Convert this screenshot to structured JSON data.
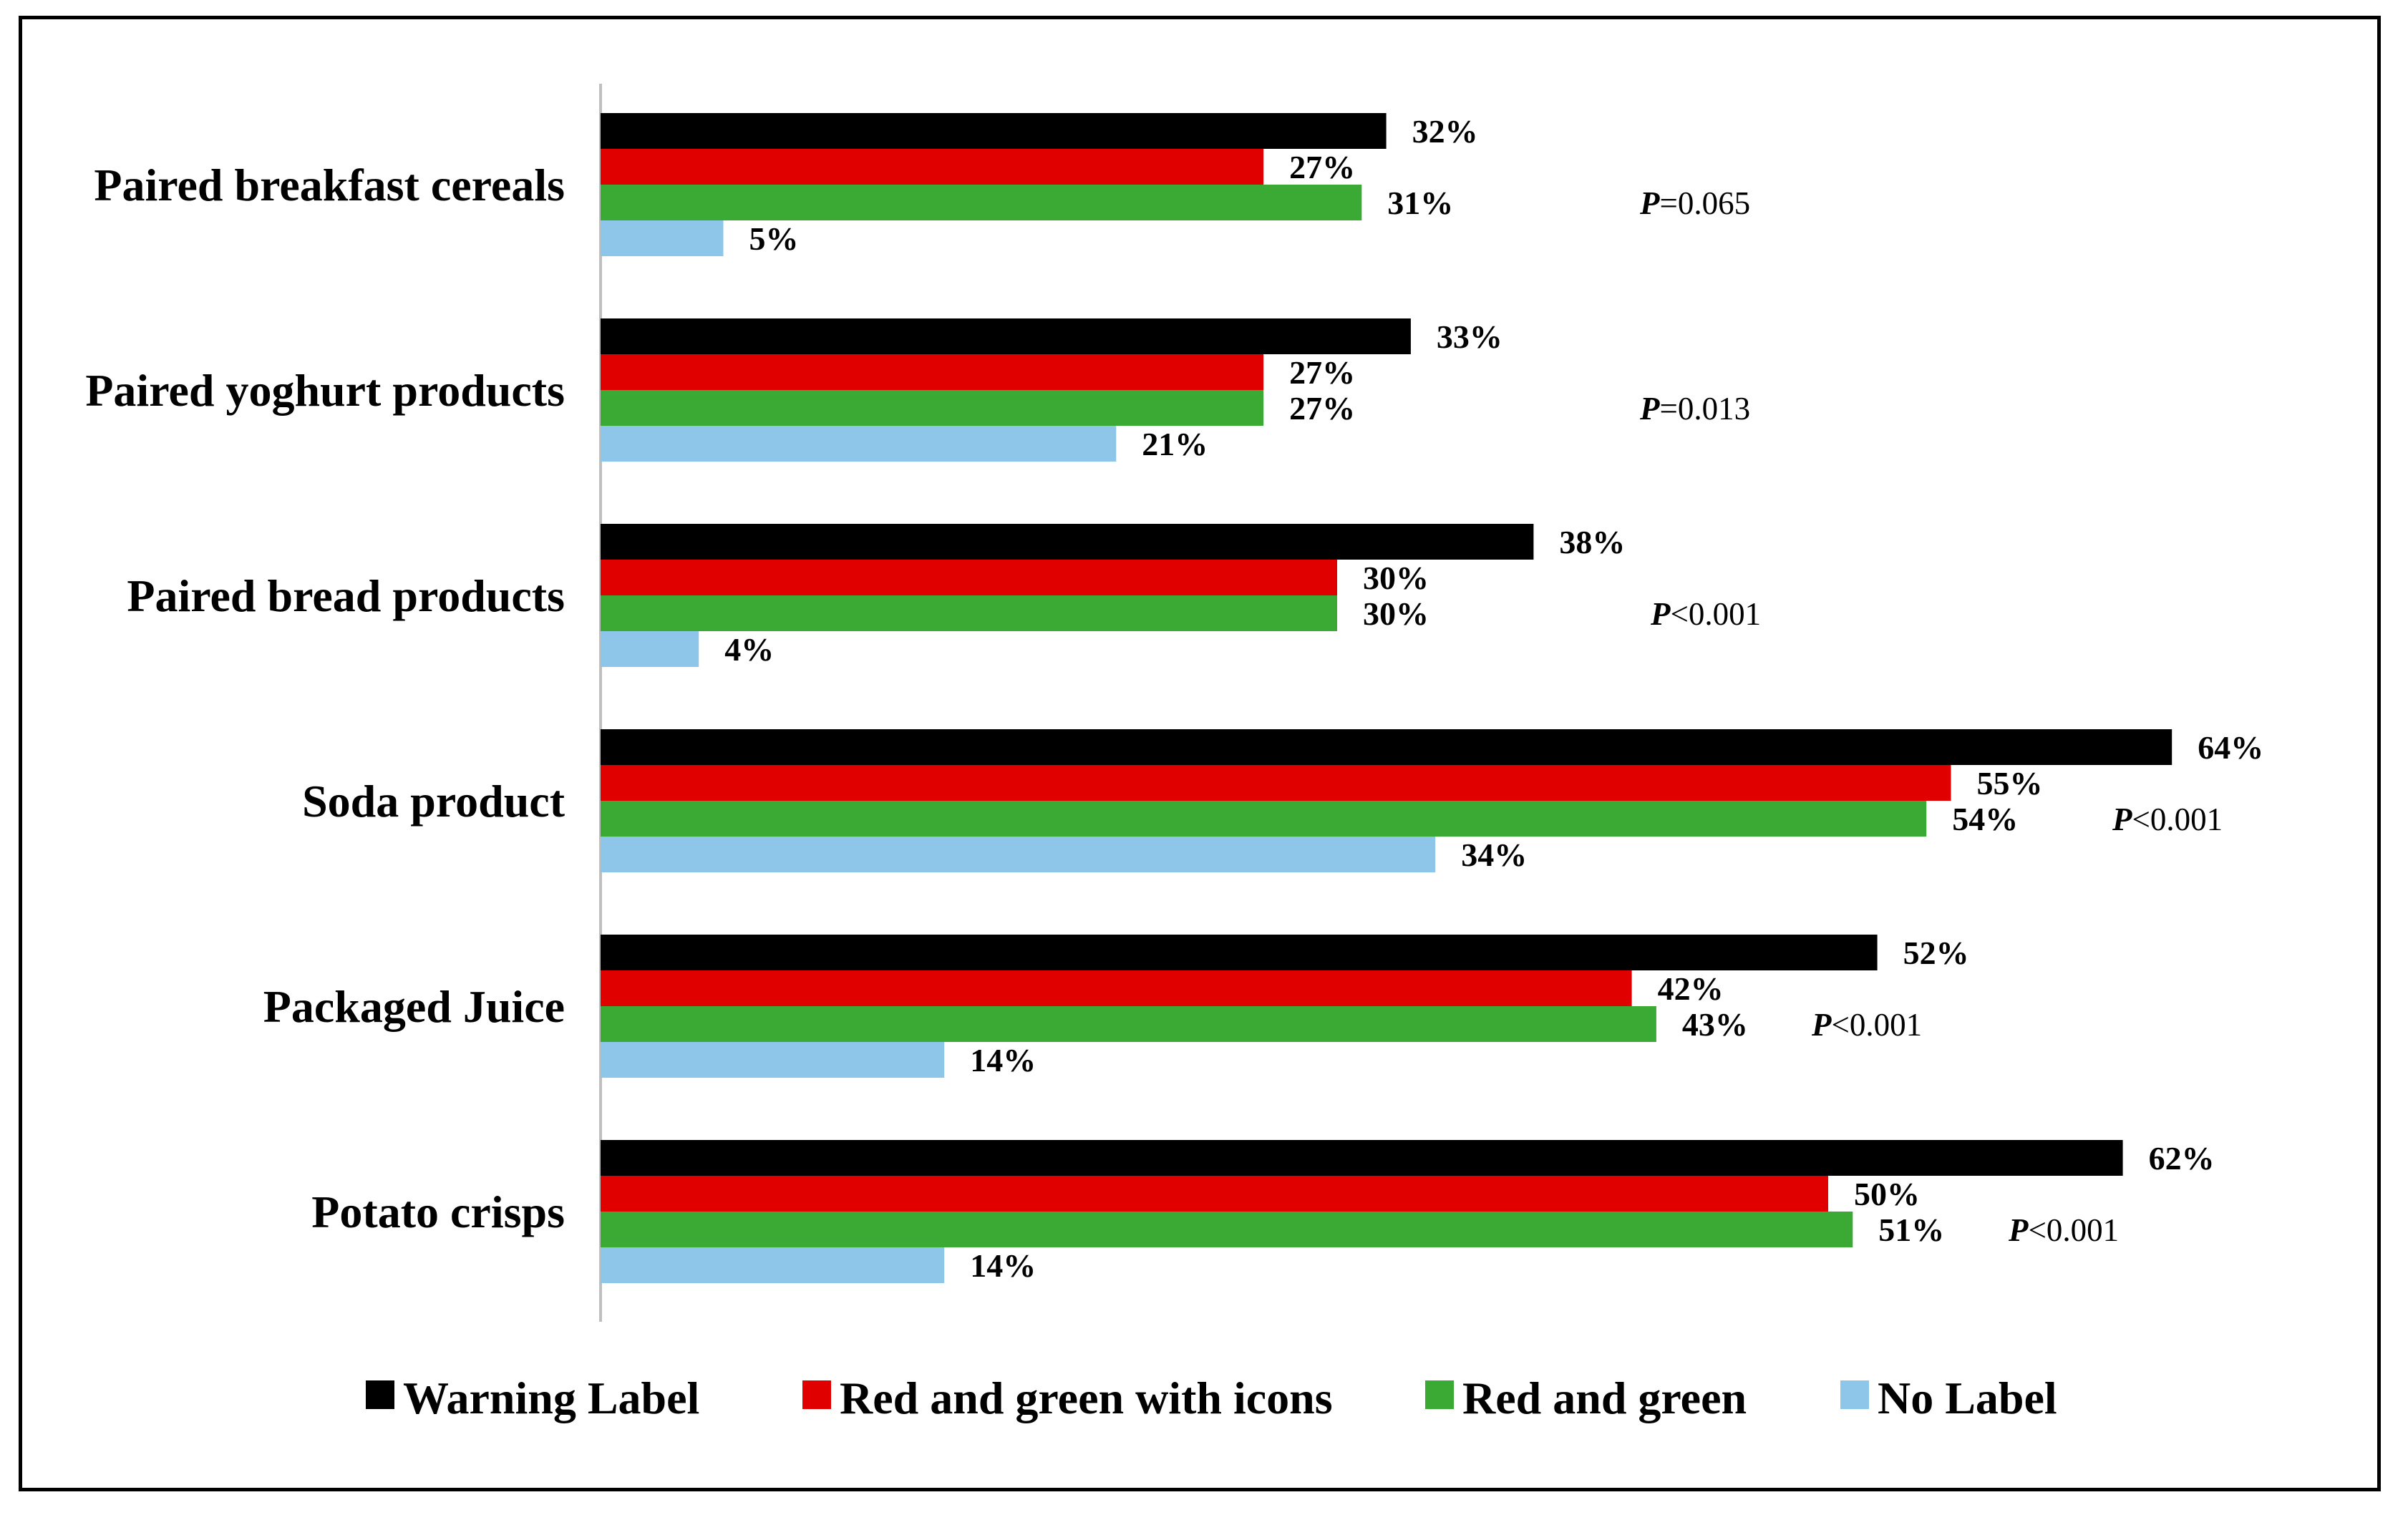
{
  "chart_data": {
    "type": "bar",
    "orientation": "horizontal",
    "categories": [
      "Paired breakfast cereals",
      "Paired yoghurt products",
      "Paired bread products",
      "Soda product",
      "Packaged Juice",
      "Potato crisps"
    ],
    "series": [
      {
        "name": "Warning Label",
        "color": "#000000",
        "values": [
          32,
          33,
          38,
          64,
          52,
          62
        ],
        "labels": [
          "32%",
          "33%",
          "38%",
          "64%",
          "52%",
          "62%"
        ]
      },
      {
        "name": "Red and green with icons",
        "color": "#e00000",
        "values": [
          27,
          27,
          30,
          55,
          42,
          50
        ],
        "labels": [
          "27%",
          "27%",
          "30%",
          "55%",
          "42%",
          "50%"
        ]
      },
      {
        "name": "Red and green",
        "color": "#3aaa35",
        "values": [
          31,
          27,
          30,
          54,
          43,
          51
        ],
        "labels": [
          "31%",
          "27%",
          "30%",
          "54%",
          "43%",
          "51%"
        ]
      },
      {
        "name": "No Label",
        "color": "#8ec6ea",
        "values": [
          5,
          21,
          4,
          34,
          14,
          14
        ],
        "labels": [
          "5%",
          "21%",
          "4%",
          "34%",
          "14%",
          "14%"
        ]
      }
    ],
    "p_values": [
      {
        "letter": "P",
        "rest": "=0.065"
      },
      {
        "letter": "P",
        "rest": "=0.013"
      },
      {
        "letter": "P",
        "rest": "<0.001"
      },
      {
        "letter": "P",
        "rest": "<0.001"
      },
      {
        "letter": "P",
        "rest": "<0.001"
      },
      {
        "letter": "P",
        "rest": "<0.001"
      }
    ],
    "xlim": [
      0,
      64
    ],
    "grid": false,
    "legend_position": "bottom"
  }
}
